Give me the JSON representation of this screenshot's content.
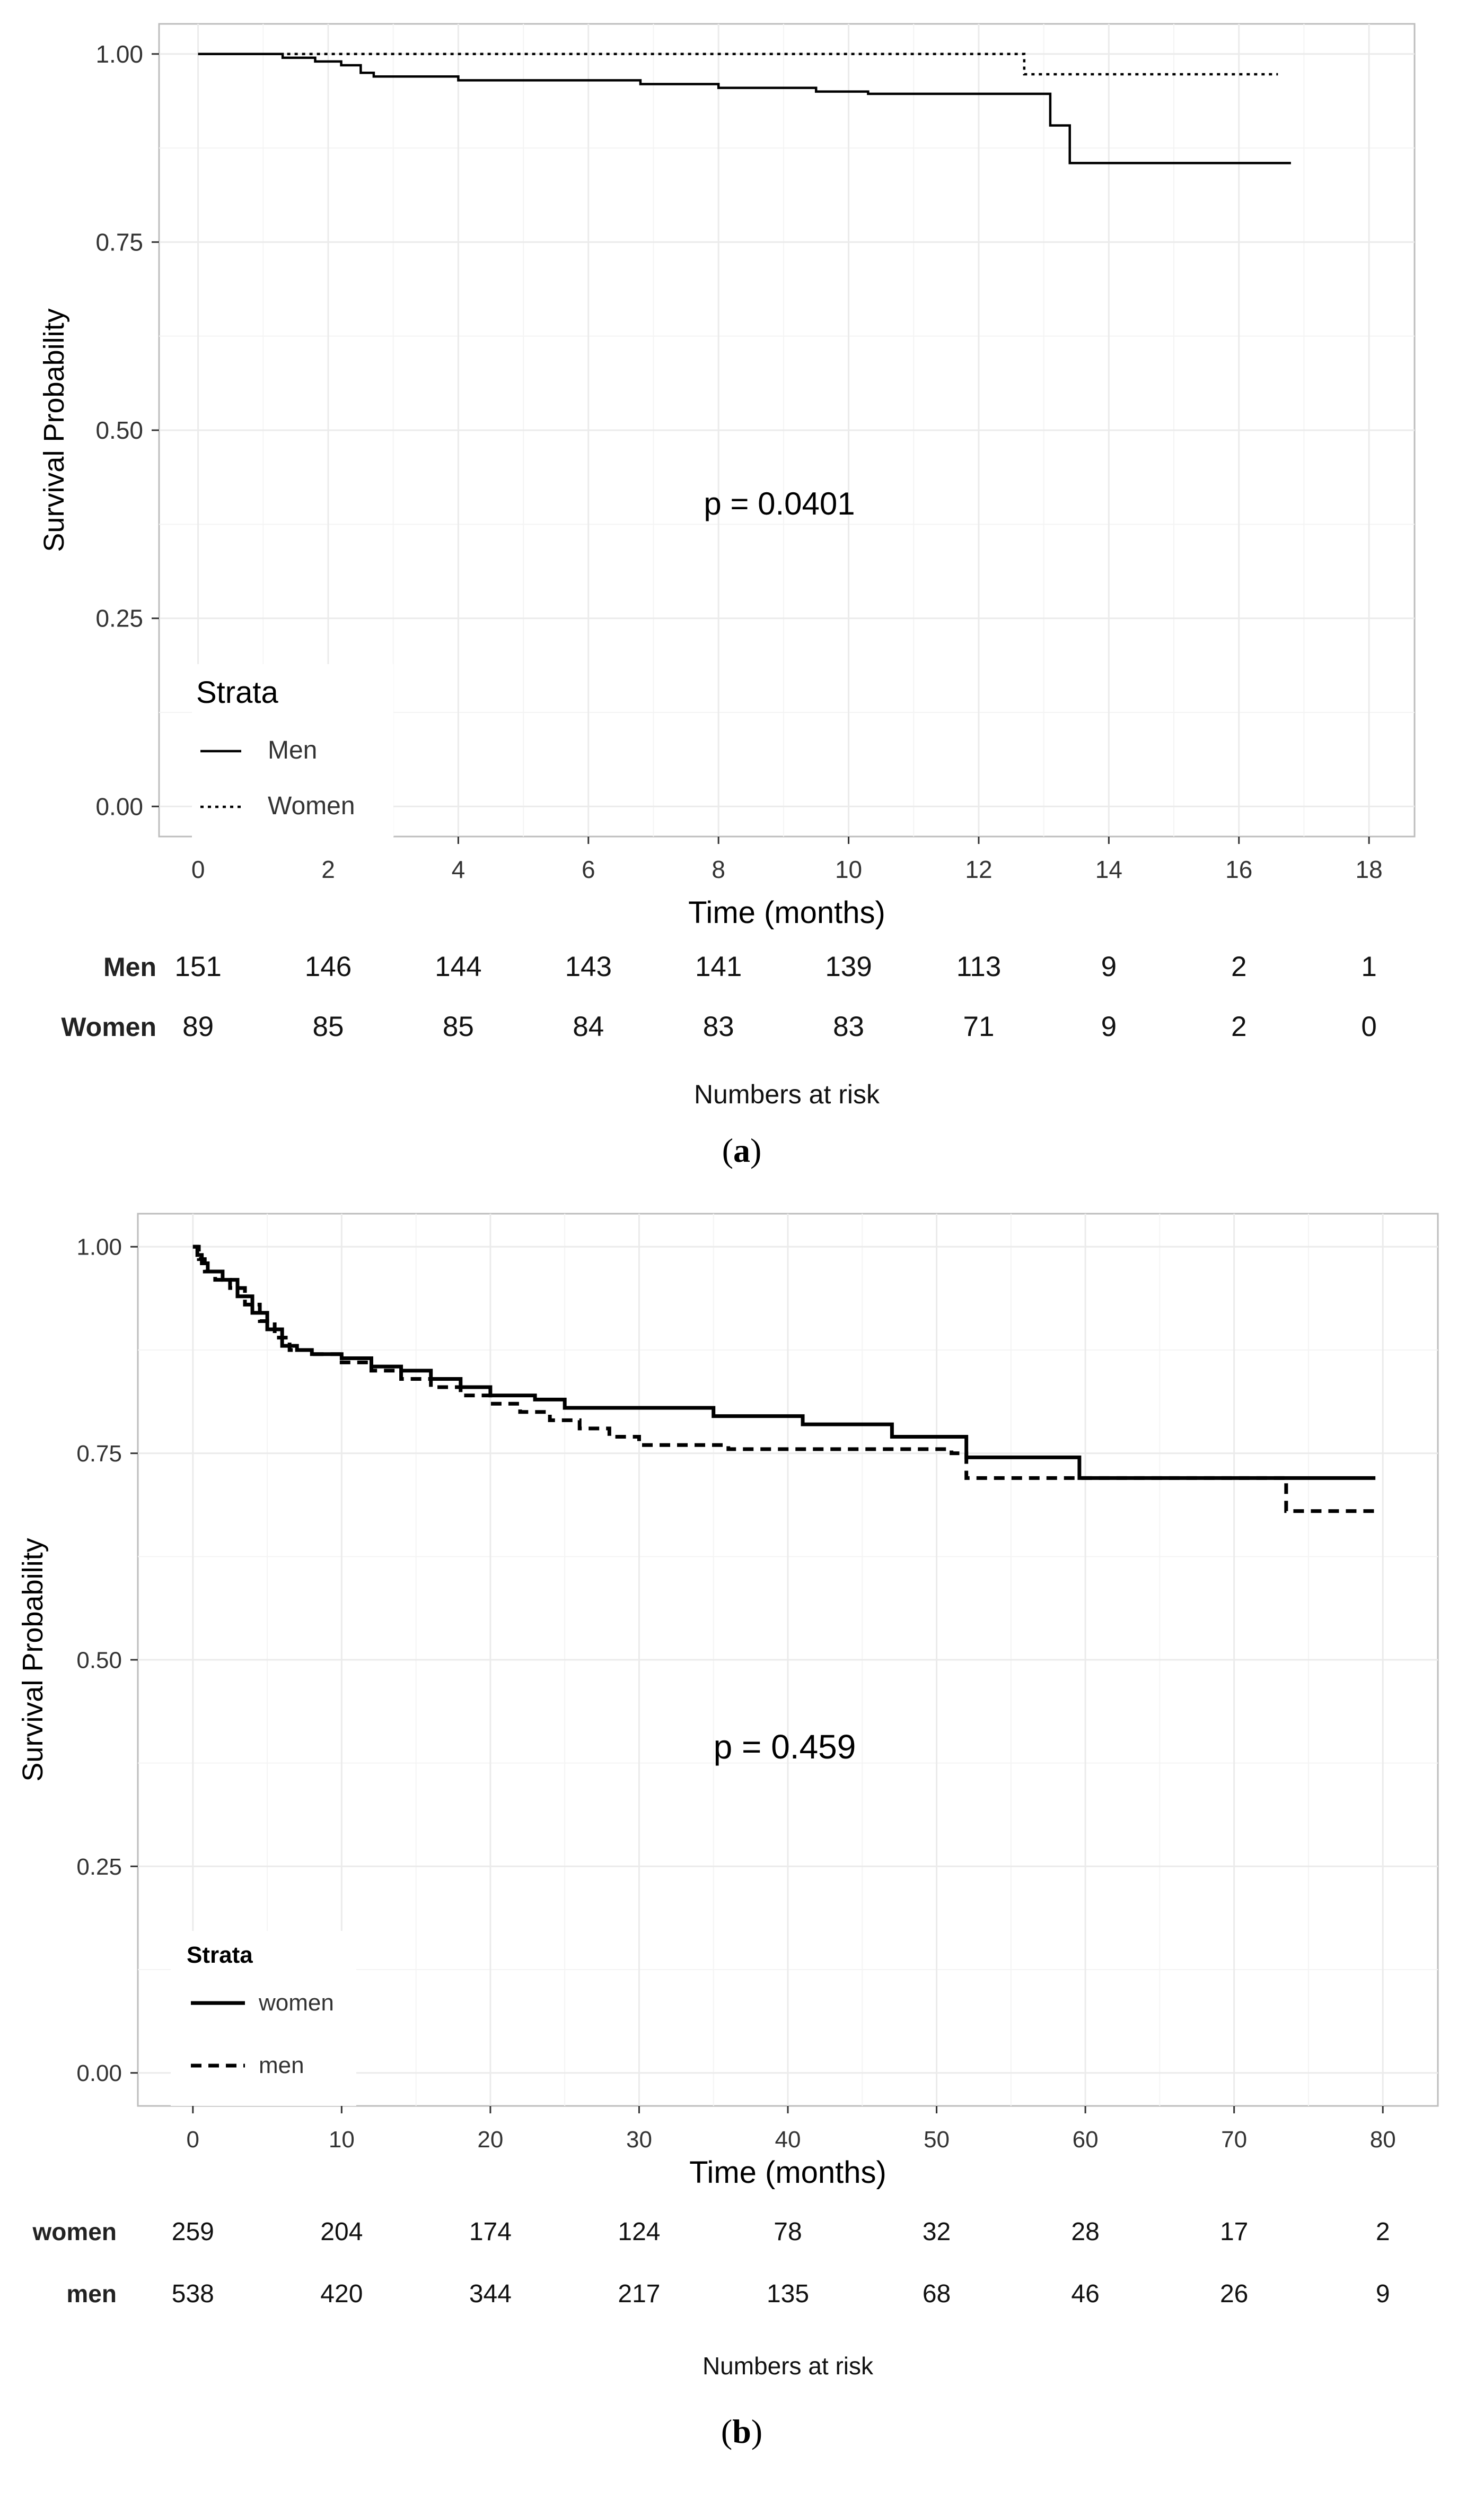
{
  "colors": {
    "panel_border": "#bdbdbd",
    "grid": "#ebebeb",
    "line": "#000000",
    "text": "#333333",
    "label": "#000000"
  },
  "chart_data": [
    {
      "type": "line",
      "panel_label": "a",
      "annotation": "p = 0.0401",
      "xlabel": "Time (months)",
      "ylabel": "Survival Probability",
      "xlim": [
        -0.6,
        18.7
      ],
      "ylim": [
        -0.04,
        1.04
      ],
      "x_ticks": [
        0,
        2,
        4,
        6,
        8,
        10,
        12,
        14,
        16,
        18
      ],
      "y_ticks": [
        0,
        0.25,
        0.5,
        0.75,
        1.0
      ],
      "y_tick_labels": [
        "0.00",
        "0.25",
        "0.50",
        "0.75",
        "1.00"
      ],
      "legend": {
        "title": "Strata",
        "position": "bottom-left"
      },
      "series": [
        {
          "name": "Men",
          "dash": "solid",
          "steps": [
            [
              0,
              1.0
            ],
            [
              1.3,
              0.995
            ],
            [
              1.8,
              0.99
            ],
            [
              2.2,
              0.985
            ],
            [
              2.5,
              0.975
            ],
            [
              2.7,
              0.97
            ],
            [
              4.0,
              0.965
            ],
            [
              6.8,
              0.96
            ],
            [
              8.0,
              0.955
            ],
            [
              9.5,
              0.95
            ],
            [
              10.3,
              0.947
            ],
            [
              13.1,
              0.905
            ],
            [
              13.4,
              0.855
            ],
            [
              16.8,
              0.855
            ]
          ]
        },
        {
          "name": "Women",
          "dash": "dotted",
          "steps": [
            [
              0,
              1.0
            ],
            [
              12.7,
              0.973
            ],
            [
              16.6,
              0.973
            ]
          ]
        }
      ],
      "risk_table": {
        "title": "Numbers at risk",
        "times": [
          0,
          2,
          4,
          6,
          8,
          10,
          12,
          14,
          16,
          18
        ],
        "rows": [
          {
            "label": "Men",
            "values": [
              "151",
              "146",
              "144",
              "143",
              "141",
              "139",
              "113",
              "9",
              "2",
              "1"
            ]
          },
          {
            "label": "Women",
            "values": [
              "89",
              "85",
              "85",
              "84",
              "83",
              "83",
              "71",
              "9",
              "2",
              "0"
            ]
          }
        ]
      }
    },
    {
      "type": "line",
      "panel_label": "b",
      "annotation": "p = 0.459",
      "xlabel": "Time (months)",
      "ylabel": "Survival Probability",
      "xlim": [
        -3.7,
        83.7
      ],
      "ylim": [
        -0.04,
        1.04
      ],
      "x_ticks": [
        0,
        10,
        20,
        30,
        40,
        50,
        60,
        70,
        80
      ],
      "y_ticks": [
        0,
        0.25,
        0.5,
        0.75,
        1.0
      ],
      "y_tick_labels": [
        "0.00",
        "0.25",
        "0.50",
        "0.75",
        "1.00"
      ],
      "legend": {
        "title": "Strata",
        "position": "bottom-left"
      },
      "series": [
        {
          "name": "women",
          "dash": "solid",
          "steps": [
            [
              0,
              1.0
            ],
            [
              0.3,
              0.99
            ],
            [
              0.6,
              0.98
            ],
            [
              1,
              0.97
            ],
            [
              2,
              0.96
            ],
            [
              3,
              0.94
            ],
            [
              4,
              0.92
            ],
            [
              5,
              0.9
            ],
            [
              6,
              0.88
            ],
            [
              7,
              0.875
            ],
            [
              8,
              0.87
            ],
            [
              10,
              0.865
            ],
            [
              12,
              0.855
            ],
            [
              14,
              0.85
            ],
            [
              16,
              0.84
            ],
            [
              18,
              0.83
            ],
            [
              20,
              0.82
            ],
            [
              23,
              0.815
            ],
            [
              25,
              0.805
            ],
            [
              28,
              0.805
            ],
            [
              35,
              0.795
            ],
            [
              38,
              0.795
            ],
            [
              41,
              0.785
            ],
            [
              45,
              0.785
            ],
            [
              47,
              0.77
            ],
            [
              49,
              0.77
            ],
            [
              52,
              0.745
            ],
            [
              57,
              0.745
            ],
            [
              59.6,
              0.72
            ],
            [
              65,
              0.72
            ],
            [
              73.5,
              0.72
            ],
            [
              79.5,
              0.72
            ]
          ]
        },
        {
          "name": "men",
          "dash": "dashed",
          "steps": [
            [
              0,
              1.0
            ],
            [
              0.4,
              0.985
            ],
            [
              0.8,
              0.97
            ],
            [
              1.5,
              0.96
            ],
            [
              2.5,
              0.95
            ],
            [
              3.5,
              0.93
            ],
            [
              4.5,
              0.91
            ],
            [
              5.5,
              0.89
            ],
            [
              6.5,
              0.875
            ],
            [
              8,
              0.87
            ],
            [
              10,
              0.86
            ],
            [
              12,
              0.85
            ],
            [
              14,
              0.84
            ],
            [
              16,
              0.83
            ],
            [
              18,
              0.82
            ],
            [
              20,
              0.81
            ],
            [
              22,
              0.8
            ],
            [
              24,
              0.79
            ],
            [
              26,
              0.78
            ],
            [
              28,
              0.77
            ],
            [
              30,
              0.76
            ],
            [
              34,
              0.76
            ],
            [
              36,
              0.755
            ],
            [
              40,
              0.755
            ],
            [
              45,
              0.755
            ],
            [
              48,
              0.755
            ],
            [
              51,
              0.75
            ],
            [
              52,
              0.72
            ],
            [
              57,
              0.72
            ],
            [
              60,
              0.72
            ],
            [
              65,
              0.72
            ],
            [
              73.5,
              0.68
            ],
            [
              79.5,
              0.68
            ]
          ]
        }
      ],
      "risk_table": {
        "title": "Numbers at risk",
        "times": [
          0,
          10,
          20,
          30,
          40,
          50,
          60,
          70,
          80
        ],
        "rows": [
          {
            "label": "women",
            "values": [
              "259",
              "204",
              "174",
              "124",
              "78",
              "32",
              "28",
              "17",
              "2"
            ]
          },
          {
            "label": "men",
            "values": [
              "538",
              "420",
              "344",
              "217",
              "135",
              "68",
              "46",
              "26",
              "9"
            ]
          }
        ]
      }
    }
  ]
}
